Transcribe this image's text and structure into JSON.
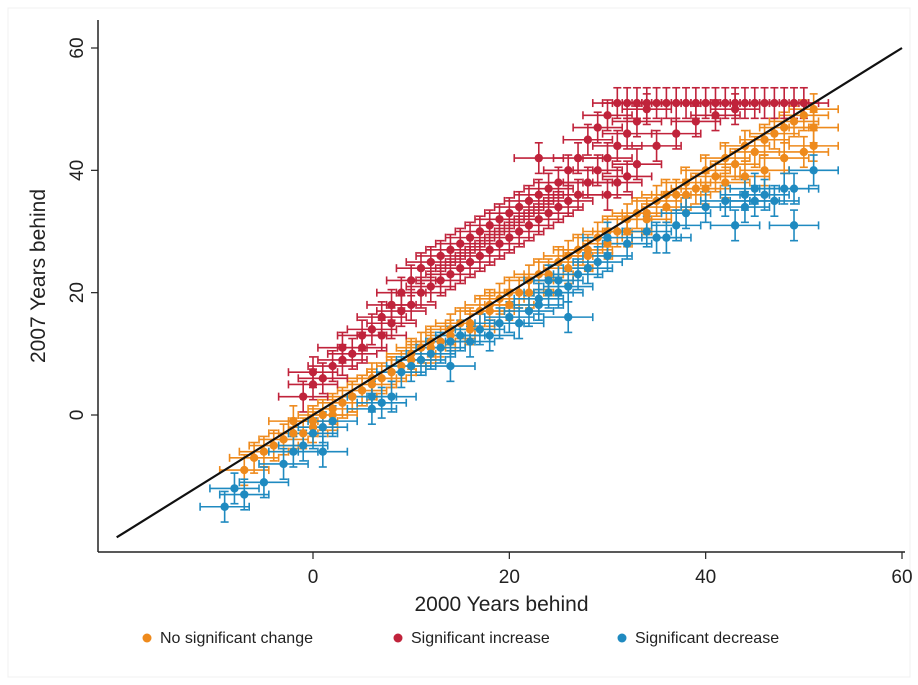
{
  "chart_data": {
    "type": "scatter",
    "title": "",
    "xlabel": "2000 Years behind",
    "ylabel": "2007 Years behind",
    "xlim": [
      -20,
      60
    ],
    "ylim": [
      -22,
      62
    ],
    "xticks": [
      0,
      20,
      40,
      60
    ],
    "yticks": [
      0,
      20,
      40,
      60
    ],
    "grid": false,
    "legend_position": "bottom",
    "reference_line": {
      "x": [
        -20,
        60
      ],
      "y": [
        -20,
        60
      ],
      "color": "#111111"
    },
    "series": [
      {
        "name": "No significant change",
        "color": "#ee8a1c",
        "points": [
          [
            -7,
            -9
          ],
          [
            -6,
            -7
          ],
          [
            -5,
            -6
          ],
          [
            -3,
            -4
          ],
          [
            -2,
            -1
          ],
          [
            -1,
            -3
          ],
          [
            0,
            -2
          ],
          [
            1,
            0
          ],
          [
            2,
            1
          ],
          [
            3,
            2
          ],
          [
            4,
            3
          ],
          [
            5,
            4
          ],
          [
            6,
            6
          ],
          [
            7,
            6
          ],
          [
            8,
            7
          ],
          [
            9,
            8
          ],
          [
            10,
            10
          ],
          [
            11,
            11
          ],
          [
            12,
            12
          ],
          [
            13,
            12
          ],
          [
            14,
            14
          ],
          [
            15,
            15
          ],
          [
            16,
            15
          ],
          [
            17,
            17
          ],
          [
            18,
            18
          ],
          [
            19,
            19
          ],
          [
            20,
            20
          ],
          [
            21,
            20
          ],
          [
            22,
            22
          ],
          [
            23,
            23
          ],
          [
            24,
            23
          ],
          [
            25,
            25
          ],
          [
            26,
            26
          ],
          [
            27,
            27
          ],
          [
            28,
            26
          ],
          [
            29,
            29
          ],
          [
            30,
            30
          ],
          [
            31,
            30
          ],
          [
            32,
            32
          ],
          [
            33,
            33
          ],
          [
            34,
            33
          ],
          [
            35,
            35
          ],
          [
            36,
            36
          ],
          [
            37,
            36
          ],
          [
            38,
            38
          ],
          [
            39,
            37
          ],
          [
            40,
            40
          ],
          [
            41,
            39
          ],
          [
            42,
            42
          ],
          [
            43,
            41
          ],
          [
            44,
            44
          ],
          [
            45,
            43
          ],
          [
            46,
            45
          ],
          [
            47,
            46
          ],
          [
            48,
            47
          ],
          [
            49,
            48
          ],
          [
            50,
            49
          ],
          [
            51,
            50
          ],
          [
            51,
            47
          ],
          [
            51,
            44
          ],
          [
            50,
            43
          ],
          [
            48,
            42
          ],
          [
            46,
            40
          ],
          [
            44,
            39
          ],
          [
            42,
            38
          ],
          [
            40,
            37
          ],
          [
            38,
            36
          ],
          [
            36,
            34
          ],
          [
            34,
            32
          ],
          [
            32,
            30
          ],
          [
            30,
            28
          ],
          [
            28,
            27
          ],
          [
            26,
            24
          ],
          [
            24,
            22
          ],
          [
            22,
            20
          ],
          [
            20,
            18
          ],
          [
            18,
            17
          ],
          [
            16,
            14
          ],
          [
            14,
            13
          ],
          [
            12,
            11
          ],
          [
            10,
            9
          ],
          [
            8,
            7
          ],
          [
            6,
            5
          ],
          [
            4,
            3
          ],
          [
            2,
            0
          ],
          [
            0,
            -1
          ],
          [
            -2,
            -3
          ],
          [
            -4,
            -5
          ]
        ],
        "xerr": 2.5,
        "yerr": 2.5
      },
      {
        "name": "Significant increase",
        "color": "#c0233b",
        "points": [
          [
            -1,
            3
          ],
          [
            0,
            5
          ],
          [
            0,
            7
          ],
          [
            1,
            6
          ],
          [
            2,
            8
          ],
          [
            3,
            9
          ],
          [
            3,
            11
          ],
          [
            4,
            10
          ],
          [
            5,
            11
          ],
          [
            5,
            13
          ],
          [
            6,
            14
          ],
          [
            7,
            13
          ],
          [
            7,
            16
          ],
          [
            8,
            15
          ],
          [
            8,
            18
          ],
          [
            9,
            17
          ],
          [
            9,
            20
          ],
          [
            10,
            18
          ],
          [
            10,
            22
          ],
          [
            11,
            20
          ],
          [
            11,
            24
          ],
          [
            12,
            21
          ],
          [
            12,
            25
          ],
          [
            13,
            22
          ],
          [
            13,
            26
          ],
          [
            14,
            23
          ],
          [
            14,
            27
          ],
          [
            15,
            24
          ],
          [
            15,
            28
          ],
          [
            16,
            25
          ],
          [
            16,
            29
          ],
          [
            17,
            26
          ],
          [
            17,
            30
          ],
          [
            18,
            27
          ],
          [
            18,
            31
          ],
          [
            19,
            28
          ],
          [
            19,
            32
          ],
          [
            20,
            29
          ],
          [
            20,
            33
          ],
          [
            21,
            30
          ],
          [
            21,
            34
          ],
          [
            22,
            31
          ],
          [
            22,
            35
          ],
          [
            23,
            42
          ],
          [
            23,
            32
          ],
          [
            23,
            36
          ],
          [
            24,
            33
          ],
          [
            24,
            37
          ],
          [
            25,
            34
          ],
          [
            25,
            38
          ],
          [
            26,
            35
          ],
          [
            26,
            40
          ],
          [
            27,
            36
          ],
          [
            27,
            42
          ],
          [
            28,
            38
          ],
          [
            28,
            45
          ],
          [
            29,
            40
          ],
          [
            29,
            47
          ],
          [
            30,
            42
          ],
          [
            30,
            49
          ],
          [
            31,
            44
          ],
          [
            31,
            51
          ],
          [
            32,
            46
          ],
          [
            32,
            51
          ],
          [
            33,
            48
          ],
          [
            33,
            51
          ],
          [
            34,
            50
          ],
          [
            34,
            51
          ],
          [
            35,
            51
          ],
          [
            36,
            51
          ],
          [
            37,
            51
          ],
          [
            38,
            51
          ],
          [
            39,
            51
          ],
          [
            40,
            51
          ],
          [
            41,
            51
          ],
          [
            42,
            51
          ],
          [
            43,
            51
          ],
          [
            44,
            51
          ],
          [
            45,
            51
          ],
          [
            46,
            51
          ],
          [
            47,
            51
          ],
          [
            48,
            51
          ],
          [
            49,
            51
          ],
          [
            50,
            51
          ],
          [
            31,
            38
          ],
          [
            33,
            41
          ],
          [
            35,
            44
          ],
          [
            37,
            46
          ],
          [
            39,
            48
          ],
          [
            41,
            49
          ],
          [
            43,
            50
          ],
          [
            30,
            36
          ],
          [
            32,
            39
          ]
        ],
        "xerr": 2.5,
        "yerr": 2.5
      },
      {
        "name": "Significant decrease",
        "color": "#1f8ac0",
        "points": [
          [
            -9,
            -15
          ],
          [
            -8,
            -12
          ],
          [
            -7,
            -13
          ],
          [
            -5,
            -11
          ],
          [
            -3,
            -8
          ],
          [
            -2,
            -6
          ],
          [
            -1,
            -5
          ],
          [
            0,
            -3
          ],
          [
            1,
            -6
          ],
          [
            1,
            -2
          ],
          [
            2,
            -1
          ],
          [
            6,
            1
          ],
          [
            6,
            3
          ],
          [
            7,
            2
          ],
          [
            8,
            3
          ],
          [
            9,
            7
          ],
          [
            10,
            8
          ],
          [
            11,
            9
          ],
          [
            12,
            10
          ],
          [
            13,
            11
          ],
          [
            14,
            12
          ],
          [
            14,
            8
          ],
          [
            15,
            13
          ],
          [
            16,
            12
          ],
          [
            17,
            14
          ],
          [
            18,
            13
          ],
          [
            19,
            15
          ],
          [
            20,
            16
          ],
          [
            21,
            15
          ],
          [
            22,
            17
          ],
          [
            23,
            18
          ],
          [
            23,
            19
          ],
          [
            24,
            20
          ],
          [
            24,
            22
          ],
          [
            25,
            20
          ],
          [
            25,
            22
          ],
          [
            26,
            16
          ],
          [
            26,
            21
          ],
          [
            27,
            23
          ],
          [
            28,
            24
          ],
          [
            29,
            25
          ],
          [
            30,
            26
          ],
          [
            30,
            29
          ],
          [
            32,
            28
          ],
          [
            34,
            30
          ],
          [
            35,
            29
          ],
          [
            36,
            29
          ],
          [
            37,
            31
          ],
          [
            38,
            33
          ],
          [
            40,
            34
          ],
          [
            42,
            35
          ],
          [
            43,
            31
          ],
          [
            44,
            34
          ],
          [
            44,
            36
          ],
          [
            45,
            35
          ],
          [
            45,
            37
          ],
          [
            46,
            36
          ],
          [
            47,
            35
          ],
          [
            48,
            37
          ],
          [
            49,
            31
          ],
          [
            49,
            37
          ],
          [
            51,
            40
          ]
        ],
        "xerr": 2.5,
        "yerr": 2.5
      }
    ]
  }
}
